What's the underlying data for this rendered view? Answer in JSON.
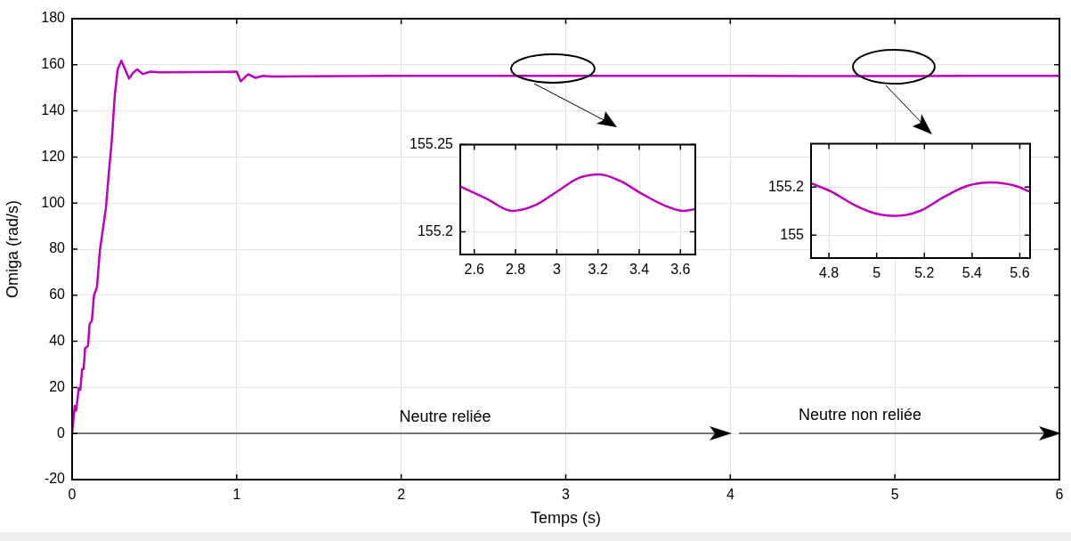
{
  "chart_data": [
    {
      "type": "line",
      "xlabel": "Temps (s)",
      "ylabel": "Omiga (rad/s)",
      "xlim": [
        0,
        6
      ],
      "ylim": [
        -20,
        180
      ],
      "xticks": [
        0,
        1,
        2,
        3,
        4,
        5,
        6
      ],
      "yticks": [
        -20,
        0,
        20,
        40,
        60,
        80,
        100,
        120,
        140,
        160,
        180
      ],
      "grid": true,
      "x": [
        0,
        0.016,
        0.025,
        0.04,
        0.05,
        0.061,
        0.07,
        0.079,
        0.097,
        0.106,
        0.12,
        0.133,
        0.151,
        0.169,
        0.205,
        0.223,
        0.241,
        0.259,
        0.277,
        0.299,
        0.322,
        0.346,
        0.368,
        0.395,
        0.43,
        0.476,
        0.53,
        1.0,
        1.025,
        1.07,
        1.115,
        1.16,
        1.214,
        1.39,
        2,
        3,
        4,
        4.5,
        5,
        5.5,
        6
      ],
      "series": [
        {
          "color": "#c000c0",
          "values": [
            0,
            12,
            10,
            19.7,
            19,
            28,
            28,
            37,
            38,
            47.4,
            49,
            60,
            63.5,
            79.6,
            97.6,
            113,
            127,
            146.6,
            158,
            161.8,
            158,
            154,
            156.3,
            158,
            156,
            157,
            156.7,
            157,
            152.8,
            155.9,
            154.3,
            155.2,
            154.9,
            155,
            155.2,
            155.2,
            155.2,
            155.1,
            155.1,
            155.2,
            155.2
          ]
        }
      ],
      "annotations": [
        "Neutre reliée",
        "Neutre non reliée"
      ]
    },
    {
      "type": "line",
      "xlim": [
        2.532,
        3.672
      ],
      "ylim": [
        155.187,
        155.25
      ],
      "xticks": [
        2.6,
        2.8,
        3,
        3.2,
        3.4,
        3.6
      ],
      "yticks": [
        155.2,
        155.25
      ],
      "grid": true,
      "x": [
        2.532,
        2.66,
        2.783,
        2.89,
        3.0,
        3.108,
        3.209,
        3.31,
        3.41,
        3.525,
        3.612,
        3.672
      ],
      "series": [
        {
          "color": "#c000c0",
          "values": [
            155.226,
            155.219,
            155.212,
            155.215,
            155.223,
            155.231,
            155.233,
            155.229,
            155.222,
            155.215,
            155.212,
            155.213
          ]
        }
      ]
    },
    {
      "type": "line",
      "xlim": [
        4.725,
        5.643
      ],
      "ylim": [
        154.904,
        155.381
      ],
      "xticks": [
        4.8,
        5,
        5.2,
        5.4,
        5.6
      ],
      "yticks": [
        155,
        155.2
      ],
      "grid": true,
      "x": [
        4.725,
        4.81,
        4.91,
        5.0,
        5.083,
        5.182,
        5.282,
        5.381,
        5.48,
        5.58,
        5.643
      ],
      "series": [
        {
          "color": "#c000c0",
          "values": [
            155.216,
            155.181,
            155.124,
            155.089,
            155.08,
            155.101,
            155.159,
            155.206,
            155.22,
            155.206,
            155.181
          ]
        }
      ]
    }
  ]
}
